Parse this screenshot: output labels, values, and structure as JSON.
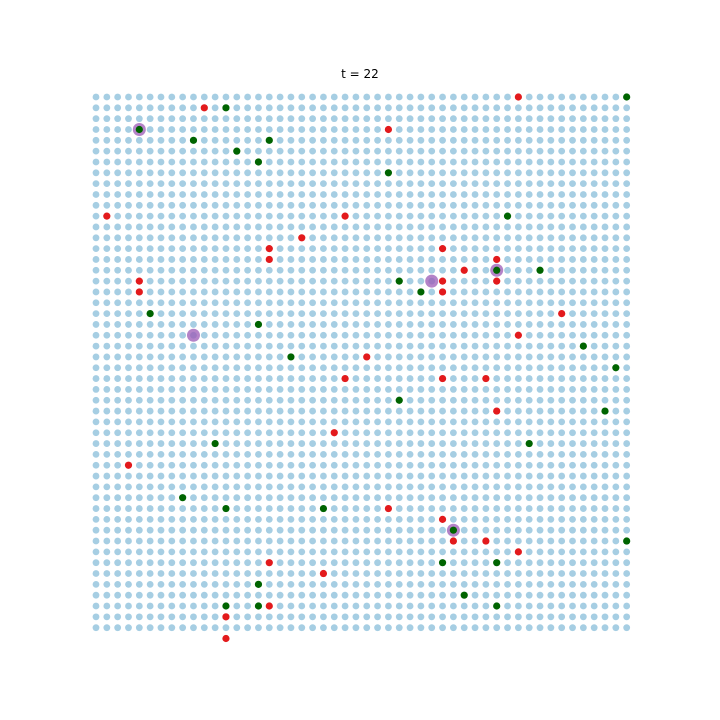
{
  "chart_data": {
    "type": "scatter",
    "title": "t = 22",
    "grid_size": [
      50,
      50
    ],
    "axes_visible": false,
    "background_color": "#a6cee3",
    "red_color": "#e31a1c",
    "green_color": "#006400",
    "highlight_color": "#9b59b6",
    "series": [
      {
        "name": "red",
        "points": [
          [
            39,
            0
          ],
          [
            10,
            1
          ],
          [
            27,
            3
          ],
          [
            1,
            11
          ],
          [
            23,
            11
          ],
          [
            19,
            13
          ],
          [
            16,
            14
          ],
          [
            32,
            14
          ],
          [
            16,
            15
          ],
          [
            37,
            15
          ],
          [
            34,
            16
          ],
          [
            4,
            17
          ],
          [
            32,
            17
          ],
          [
            37,
            17
          ],
          [
            4,
            18
          ],
          [
            32,
            18
          ],
          [
            43,
            20
          ],
          [
            39,
            22
          ],
          [
            25,
            24
          ],
          [
            23,
            26
          ],
          [
            32,
            26
          ],
          [
            36,
            26
          ],
          [
            37,
            29
          ],
          [
            22,
            31
          ],
          [
            3,
            34
          ],
          [
            27,
            38
          ],
          [
            32,
            39
          ],
          [
            33,
            41
          ],
          [
            36,
            41
          ],
          [
            39,
            42
          ],
          [
            16,
            43
          ],
          [
            21,
            44
          ],
          [
            16,
            47
          ],
          [
            12,
            48
          ],
          [
            12,
            50
          ]
        ]
      },
      {
        "name": "green",
        "points": [
          [
            49,
            0
          ],
          [
            12,
            1
          ],
          [
            4,
            3
          ],
          [
            9,
            4
          ],
          [
            16,
            4
          ],
          [
            13,
            5
          ],
          [
            15,
            6
          ],
          [
            27,
            7
          ],
          [
            38,
            11
          ],
          [
            37,
            16
          ],
          [
            41,
            16
          ],
          [
            28,
            17
          ],
          [
            30,
            18
          ],
          [
            5,
            20
          ],
          [
            15,
            21
          ],
          [
            45,
            23
          ],
          [
            18,
            24
          ],
          [
            48,
            25
          ],
          [
            28,
            28
          ],
          [
            47,
            29
          ],
          [
            11,
            32
          ],
          [
            40,
            32
          ],
          [
            8,
            37
          ],
          [
            12,
            38
          ],
          [
            21,
            38
          ],
          [
            33,
            40
          ],
          [
            49,
            41
          ],
          [
            32,
            43
          ],
          [
            37,
            43
          ],
          [
            15,
            45
          ],
          [
            34,
            46
          ],
          [
            37,
            47
          ],
          [
            12,
            47
          ],
          [
            15,
            47
          ]
        ]
      },
      {
        "name": "highlighted",
        "points": [
          [
            4,
            3
          ],
          [
            9,
            22
          ],
          [
            31,
            17
          ],
          [
            37,
            16
          ],
          [
            33,
            40
          ]
        ]
      }
    ]
  }
}
